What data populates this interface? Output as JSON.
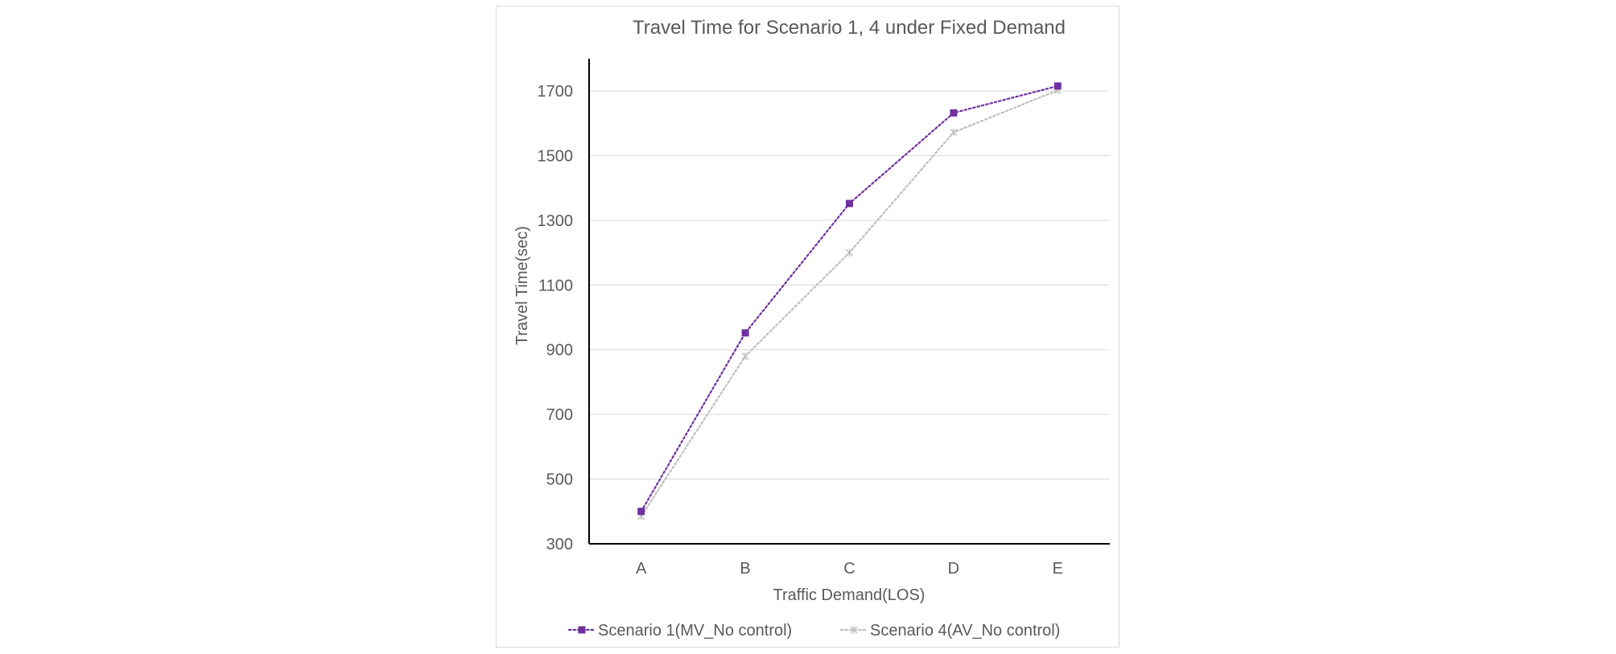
{
  "chart_data": {
    "type": "line",
    "title": "Travel Time for Scenario 1, 4 under Fixed Demand",
    "xlabel": "Traffic Demand(LOS)",
    "ylabel": "Travel Time(sec)",
    "categories": [
      "A",
      "B",
      "C",
      "D",
      "E"
    ],
    "ylim": [
      300,
      1800
    ],
    "yticks": [
      300,
      500,
      700,
      900,
      1100,
      1300,
      1500,
      1700
    ],
    "grid": true,
    "legend_position": "bottom",
    "series": [
      {
        "name": "Scenario 1(MV_No control)",
        "values": [
          400,
          952,
          1352,
          1632,
          1715
        ],
        "color": "#7030a0",
        "marker": "square",
        "line_style": "dotted"
      },
      {
        "name": "Scenario 4(AV_No control)",
        "values": [
          385,
          880,
          1200,
          1572,
          1702
        ],
        "color": "#bfbfbf",
        "marker": "x",
        "line_style": "dotted"
      }
    ]
  }
}
